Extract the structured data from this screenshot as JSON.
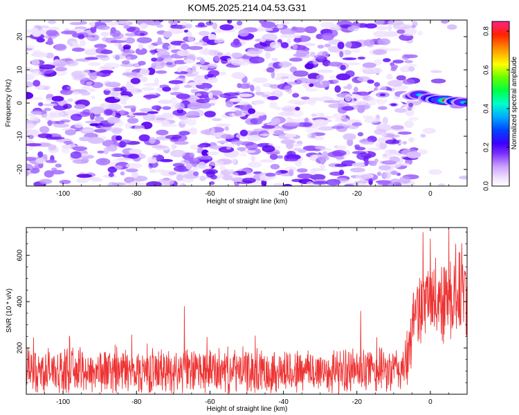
{
  "title": "KOM5.2025.214.04.53.G31",
  "chart_data": [
    {
      "type": "heatmap",
      "xlabel": "Height of straight line (km)",
      "ylabel": "Frequency (Hz)",
      "xlim": [
        -110,
        10
      ],
      "ylim": [
        -25,
        25
      ],
      "x_ticks": [
        -100,
        -80,
        -60,
        -40,
        -20,
        0
      ],
      "y_ticks": [
        -20,
        -10,
        0,
        10,
        20
      ],
      "colorbar": {
        "label": "Normalized spectral amplitude",
        "range": [
          0.0,
          0.85
        ],
        "ticks": [
          0.0,
          0.2,
          0.4,
          0.6,
          0.8
        ],
        "colormap": "rainbow"
      },
      "background_amplitude_range": [
        0.0,
        0.15
      ],
      "peak_signal": [
        {
          "x": -5,
          "y": 2,
          "value": 0.35
        },
        {
          "x": -3,
          "y": 2.5,
          "value": 0.45
        },
        {
          "x": 0,
          "y": 1.5,
          "value": 0.55
        },
        {
          "x": 2,
          "y": 1,
          "value": 0.65
        },
        {
          "x": 4,
          "y": 0.8,
          "value": 0.85
        },
        {
          "x": 7,
          "y": 0.5,
          "value": 0.65
        },
        {
          "x": 9,
          "y": 0.2,
          "value": 0.45
        },
        {
          "x": -13,
          "y": 2.5,
          "value": 0.2
        },
        {
          "x": -10,
          "y": -0.5,
          "value": 0.18
        },
        {
          "x": -13,
          "y": -1.5,
          "value": 0.15
        }
      ]
    },
    {
      "type": "line",
      "xlabel": "Height of straight line (km)",
      "ylabel": "SNR (10 * v/v)",
      "xlim": [
        -110,
        10
      ],
      "ylim": [
        0,
        720
      ],
      "x_ticks": [
        -100,
        -80,
        -60,
        -40,
        -20,
        0
      ],
      "y_ticks": [
        200,
        400,
        600
      ],
      "color": "#ee3333",
      "series": [
        {
          "x": [
            -110,
            -100,
            -90,
            -80,
            -70,
            -60,
            -50,
            -40,
            -30,
            -20,
            -10,
            -8,
            -6,
            -4,
            -2,
            0,
            2,
            4,
            6,
            8,
            10
          ],
          "y_baseline": [
            100,
            100,
            100,
            100,
            100,
            100,
            100,
            100,
            100,
            100,
            100,
            110,
            150,
            380,
            390,
            400,
            410,
            420,
            430,
            440,
            450
          ],
          "y_spread": [
            100,
            100,
            100,
            100,
            100,
            100,
            100,
            100,
            100,
            100,
            100,
            110,
            130,
            160,
            170,
            180,
            190,
            200,
            210,
            220,
            230
          ]
        }
      ],
      "notable_peaks": [
        {
          "x": -108,
          "y": 245
        },
        {
          "x": -67,
          "y": 380
        },
        {
          "x": -19,
          "y": 360
        },
        {
          "x": -2,
          "y": 700
        },
        {
          "x": 5,
          "y": 720
        }
      ]
    }
  ]
}
